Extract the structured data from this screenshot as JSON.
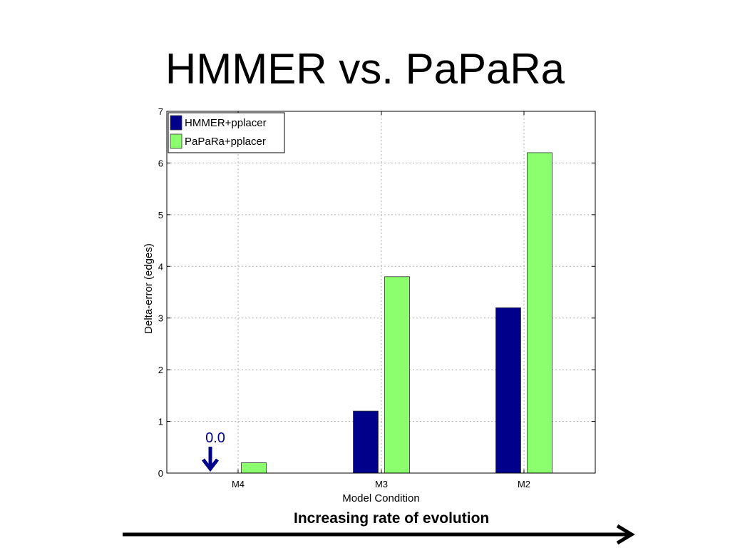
{
  "slide": {
    "title": "HMMER vs. PaPaRa",
    "caption": "Increasing rate of evolution"
  },
  "chart_data": {
    "type": "bar",
    "categories": [
      "M4",
      "M3",
      "M2"
    ],
    "series": [
      {
        "name": "HMMER+pplacer",
        "color": "#00008b",
        "values": [
          0.0,
          1.2,
          3.2
        ]
      },
      {
        "name": "PaPaRa+pplacer",
        "color": "#8cff6e",
        "values": [
          0.2,
          3.8,
          6.2
        ]
      }
    ],
    "xlabel": "Model Condition",
    "ylabel": "Delta-error (edges)",
    "ylim": [
      0,
      7
    ],
    "yticks": [
      "0",
      "1",
      "2",
      "3",
      "4",
      "5",
      "6",
      "7"
    ],
    "grid": true,
    "legend_position": "top-left",
    "annotation": {
      "text": "0.0",
      "category": "M4",
      "series": "HMMER+pplacer",
      "icon": "down-arrow-icon",
      "color": "#00008b"
    }
  }
}
